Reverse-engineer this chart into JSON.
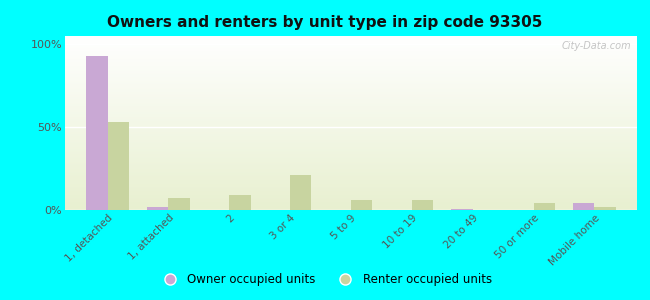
{
  "title": "Owners and renters by unit type in zip code 93305",
  "categories": [
    "1, detached",
    "1, attached",
    "2",
    "3 or 4",
    "5 to 9",
    "10 to 19",
    "20 to 49",
    "50 or more",
    "Mobile home"
  ],
  "owner_values": [
    93,
    2,
    0,
    0,
    0,
    0,
    0.5,
    0,
    4
  ],
  "renter_values": [
    53,
    7,
    9,
    21,
    6,
    6,
    0,
    4,
    2
  ],
  "owner_color": "#c9a8d4",
  "renter_color": "#c8d4a0",
  "background_color": "#00ffff",
  "watermark": "City-Data.com",
  "ylabel_ticks": [
    "0%",
    "50%",
    "100%"
  ],
  "ytick_values": [
    0,
    50,
    100
  ],
  "ylim": [
    0,
    105
  ],
  "bar_width": 0.35,
  "legend_owner": "Owner occupied units",
  "legend_renter": "Renter occupied units"
}
